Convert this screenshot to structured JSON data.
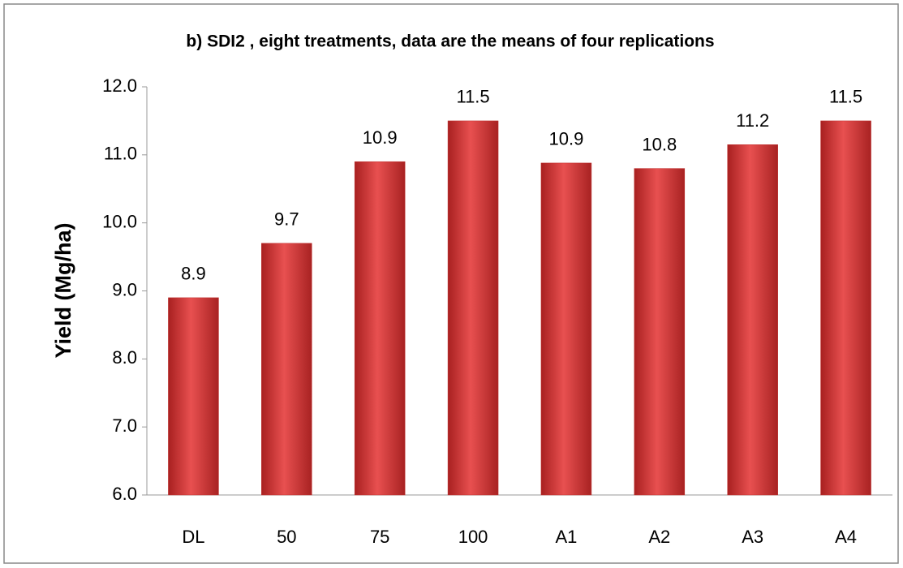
{
  "chart_data": {
    "type": "bar",
    "title": "b)  SDI2 , eight treatments, data are the means of four replications",
    "y_label": "Yield (Mg/ha)",
    "categories": [
      "DL",
      "50",
      "75",
      "100",
      "A1",
      "A2",
      "A3",
      "A4"
    ],
    "values": [
      8.9,
      9.7,
      10.9,
      11.5,
      10.88,
      10.8,
      11.15,
      11.5
    ],
    "value_labels": [
      "8.9",
      "9.7",
      "10.9",
      "11.5",
      "10.9",
      "10.8",
      "11.2",
      "11.5"
    ],
    "color": "#c0302e",
    "ylim": [
      6,
      12
    ],
    "yticks": [
      {
        "value": 6,
        "label": "6.0"
      },
      {
        "value": 7,
        "label": "7.0"
      },
      {
        "value": 8,
        "label": "8.0"
      },
      {
        "value": 9,
        "label": "9.0"
      },
      {
        "value": 10,
        "label": "10.0"
      },
      {
        "value": 11,
        "label": "11.0"
      },
      {
        "value": 12,
        "label": "12.0"
      }
    ],
    "grid": false
  }
}
